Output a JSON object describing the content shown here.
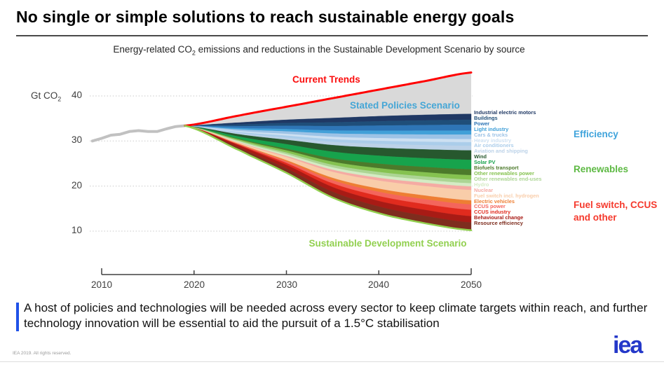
{
  "page": {
    "title": "No single or simple solutions to reach sustainable energy goals",
    "subtitle_pre": "Energy-related CO",
    "subtitle_sub": "2",
    "subtitle_post": " emissions and reductions in the Sustainable Development Scenario by source",
    "footer_line1": "A host of policies and technologies will be needed across every sector to keep climate targets within reach,",
    "footer_line2": "and further technology innovation will be essential to aid the pursuit of a 1.5°C stabilisation",
    "copyright": "IEA 2019. All rights reserved.",
    "logo_text": "iea"
  },
  "chart_data": {
    "type": "area",
    "title": "Energy-related CO2 emissions and reductions in the Sustainable Development Scenario by source",
    "ylabel_pre": "Gt CO",
    "ylabel_sub": "2",
    "xlim": [
      2010,
      2050
    ],
    "ylim": [
      0,
      47
    ],
    "y_ticks": [
      40,
      30,
      20,
      10
    ],
    "x_ticks": [
      2010,
      2020,
      2030,
      2040,
      2050
    ],
    "grid": "dotted-horizontal",
    "historical": {
      "color": "#c1c1c1",
      "years": [
        2009,
        2010,
        2011,
        2012,
        2013,
        2014,
        2015,
        2016,
        2017,
        2018,
        2019
      ],
      "values": [
        30.0,
        30.6,
        31.3,
        31.5,
        32.1,
        32.3,
        32.1,
        32.1,
        32.7,
        33.2,
        33.4
      ]
    },
    "control_years": [
      2019,
      2025,
      2030,
      2035,
      2040,
      2045,
      2050
    ],
    "current_trends": {
      "label": "Current Trends",
      "line_color": "#ff0000",
      "values": [
        33.4,
        35.7,
        37.6,
        39.5,
        41.4,
        43.3,
        45.2
      ]
    },
    "stated_policies": {
      "label": "Stated Policies Scenario",
      "label_color": "#45a6d6",
      "area_color": "#d9d9d9",
      "values": [
        33.4,
        34.1,
        34.7,
        35.1,
        35.5,
        35.8,
        36.0
      ]
    },
    "sustainable_development": {
      "label": "Sustainable Development Scenario",
      "line_color": "#92d050",
      "approx_values": [
        33.4,
        27.9,
        22.9,
        17.7,
        13.9,
        11.5,
        10.2
      ]
    },
    "profiles": {
      "early": [
        0,
        0.34,
        0.56,
        0.75,
        0.87,
        0.95,
        1
      ],
      "mid": [
        0,
        0.25,
        0.47,
        0.7,
        0.84,
        0.93,
        1
      ],
      "late": [
        0,
        0.1,
        0.3,
        0.58,
        0.78,
        0.91,
        1
      ]
    },
    "bands": [
      {
        "name": "Industrial electric motors",
        "color": "#1f3864",
        "reduction_2050": 1.3,
        "profile": "early",
        "group": "Efficiency"
      },
      {
        "name": "Buildings",
        "color": "#1f4e79",
        "reduction_2050": 1.1,
        "profile": "early",
        "group": "Efficiency"
      },
      {
        "name": "Power",
        "color": "#2e75b6",
        "reduction_2050": 1.3,
        "profile": "early",
        "group": "Efficiency"
      },
      {
        "name": "Light industry",
        "color": "#41a0d8",
        "reduction_2050": 0.9,
        "profile": "early",
        "group": "Efficiency"
      },
      {
        "name": "Cars & trucks",
        "color": "#9dc3e6",
        "reduction_2050": 1.0,
        "profile": "early",
        "group": "Efficiency"
      },
      {
        "name": "Heavy industry",
        "color": "#cde0f2",
        "reduction_2050": 0.7,
        "profile": "early",
        "group": "Efficiency"
      },
      {
        "name": "Air conditioners",
        "color": "#abcdea",
        "reduction_2050": 0.8,
        "profile": "early",
        "group": "Efficiency"
      },
      {
        "name": "Aviation and shipping",
        "color": "#bcd2e8",
        "reduction_2050": 1.0,
        "profile": "mid",
        "group": "Efficiency"
      },
      {
        "name": "Wind",
        "color": "#27582e",
        "reduction_2050": 2.1,
        "profile": "mid",
        "group": "Renewables"
      },
      {
        "name": "Solar PV",
        "color": "#17a34c",
        "reduction_2050": 2.1,
        "profile": "mid",
        "group": "Renewables"
      },
      {
        "name": "Biofuels transport",
        "color": "#4c7a2b",
        "reduction_2050": 1.3,
        "profile": "late",
        "group": "Renewables"
      },
      {
        "name": "Other renewables power",
        "color": "#85c250",
        "reduction_2050": 1.0,
        "profile": "mid",
        "group": "Renewables"
      },
      {
        "name": "Other renewables end-uses",
        "color": "#acd594",
        "reduction_2050": 0.8,
        "profile": "mid",
        "group": "Renewables"
      },
      {
        "name": "Hydro",
        "color": "#d4ebc4",
        "reduction_2050": 0.7,
        "profile": "early",
        "group": "Renewables"
      },
      {
        "name": "Nuclear",
        "color": "#f5aba3",
        "reduction_2050": 0.8,
        "profile": "late",
        "group": "Fuel switch, CCUS and other"
      },
      {
        "name": "Fuel switch incl. hydrogen",
        "color": "#f9cda9",
        "reduction_2050": 2.3,
        "profile": "late",
        "group": "Fuel switch, CCUS and other"
      },
      {
        "name": "Electric vehicles",
        "color": "#ee7e33",
        "reduction_2050": 0.9,
        "profile": "late",
        "group": "Fuel switch, CCUS and other"
      },
      {
        "name": "CCUS power",
        "color": "#f4655c",
        "reduction_2050": 1.2,
        "profile": "late",
        "group": "Fuel switch, CCUS and other"
      },
      {
        "name": "CCUS industry",
        "color": "#e12b1e",
        "reduction_2050": 1.4,
        "profile": "late",
        "group": "Fuel switch, CCUS and other"
      },
      {
        "name": "Behavioural change",
        "color": "#a81b15",
        "reduction_2050": 1.4,
        "profile": "early",
        "group": "Fuel switch, CCUS and other"
      },
      {
        "name": "Resource efficiency",
        "color": "#7e2d1e",
        "reduction_2050": 1.7,
        "profile": "early",
        "group": "Fuel switch, CCUS and other"
      }
    ],
    "groups": [
      {
        "label": "Efficiency",
        "color": "#3fa3db"
      },
      {
        "label": "Renewables",
        "color": "#5db943"
      },
      {
        "label": "Fuel switch, CCUS and other",
        "color": "#f5392c"
      }
    ],
    "legend_position": "right"
  }
}
